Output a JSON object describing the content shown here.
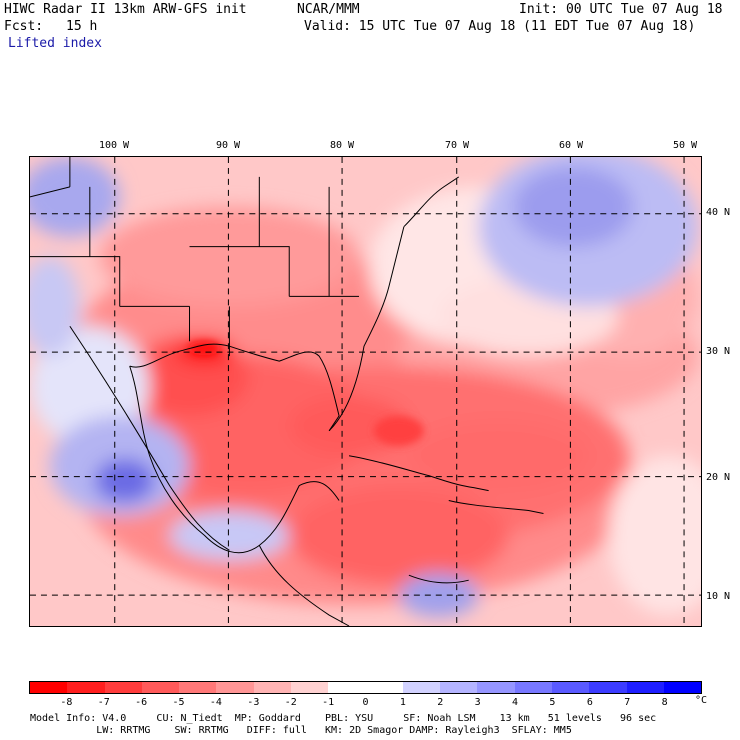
{
  "header": {
    "title": "HIWC Radar II 13km ARW-GFS init",
    "source": "NCAR/MMM",
    "init": "Init: 00 UTC Tue 07 Aug 18",
    "fcst_label": "Fcst:",
    "fcst_value": "15 h",
    "valid": "Valid: 15 UTC Tue 07 Aug 18 (11 EDT Tue 07 Aug 18)",
    "field": "Lifted index"
  },
  "map": {
    "longitude_labels": [
      "100 W",
      "90 W",
      "80 W",
      "70 W",
      "60 W",
      "50 W"
    ],
    "latitude_labels": [
      "40 N",
      "30 N",
      "20 N",
      "10 N"
    ]
  },
  "colorbar": {
    "labels": [
      "-8",
      "-7",
      "-6",
      "-5",
      "-4",
      "-3",
      "-2",
      "-1",
      "0",
      "1",
      "2",
      "3",
      "4",
      "5",
      "6",
      "7",
      "8"
    ],
    "unit": "°C",
    "colors": [
      "#ff0000",
      "#ff1e1e",
      "#ff3c3c",
      "#ff5a5a",
      "#ff7878",
      "#ff9696",
      "#ffb4b4",
      "#ffd2d2",
      "#ffffff",
      "#ffffff",
      "#d2d2ff",
      "#b4b4ff",
      "#9696ff",
      "#7878ff",
      "#5a5aff",
      "#3c3cff",
      "#1e1eff",
      "#0000ff"
    ]
  },
  "footer": {
    "line1": "Model Info: V4.0     CU: N_Tiedt  MP: Goddard    PBL: YSU     SF: Noah LSM    13 km   51 levels   96 sec",
    "line2": "           LW: RRTMG    SW: RRTMG   DIFF: full   KM: 2D Smagor DAMP: Rayleigh3  SFLAY: MM5"
  }
}
